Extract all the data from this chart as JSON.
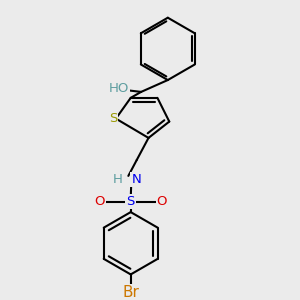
{
  "background_color": "#ebebeb",
  "bond_color": "#000000",
  "bond_width": 1.5,
  "atom_colors": {
    "S_thiophene": "#999900",
    "S_sulfonyl": "#0000ee",
    "O": "#dd0000",
    "N": "#0000ee",
    "Br": "#cc7700",
    "H": "#5f9ea0",
    "HO": "#5f9ea0",
    "C": "#000000"
  },
  "font_size": 9.5
}
